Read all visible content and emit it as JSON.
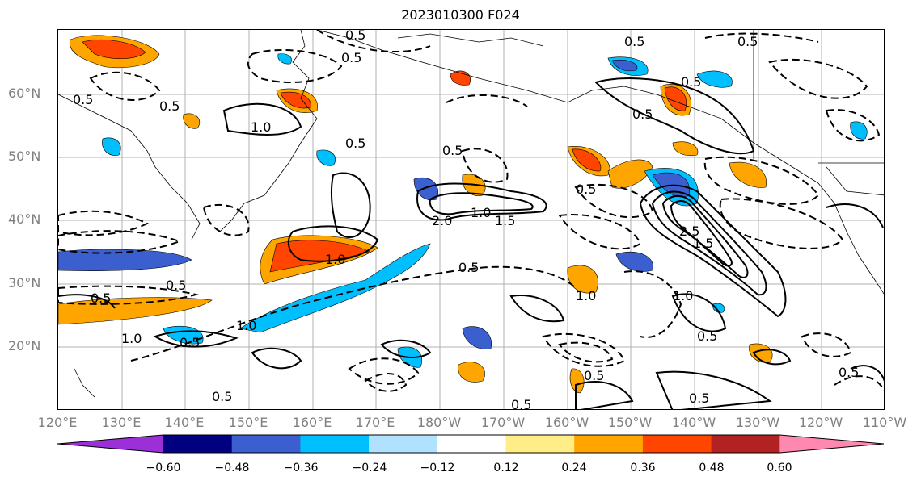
{
  "title": "2023010300 F024",
  "map": {
    "lat_labels": [
      "60°N",
      "50°N",
      "40°N",
      "30°N",
      "20°N"
    ],
    "lon_labels": [
      "120°E",
      "130°E",
      "140°E",
      "150°E",
      "160°E",
      "170°E",
      "180°W",
      "170°W",
      "160°W",
      "150°W",
      "140°W",
      "130°W",
      "120°W",
      "110°W"
    ],
    "contour_labels": [
      "0.5",
      "1.0",
      "1.5",
      "2.0",
      "2.5"
    ],
    "gridlines": true,
    "coastlines": true
  },
  "colorbar": {
    "ticks": [
      "−0.60",
      "−0.48",
      "−0.36",
      "−0.24",
      "−0.12",
      "0.12",
      "0.24",
      "0.36",
      "0.48",
      "0.60"
    ],
    "colors": [
      "#9b30d9",
      "#000080",
      "#3b5fcf",
      "#00bfff",
      "#b0e2ff",
      "#ffffff",
      "#ffee88",
      "#ffa500",
      "#ff4500",
      "#b22222",
      "#ff88b0"
    ],
    "extend": "both"
  }
}
